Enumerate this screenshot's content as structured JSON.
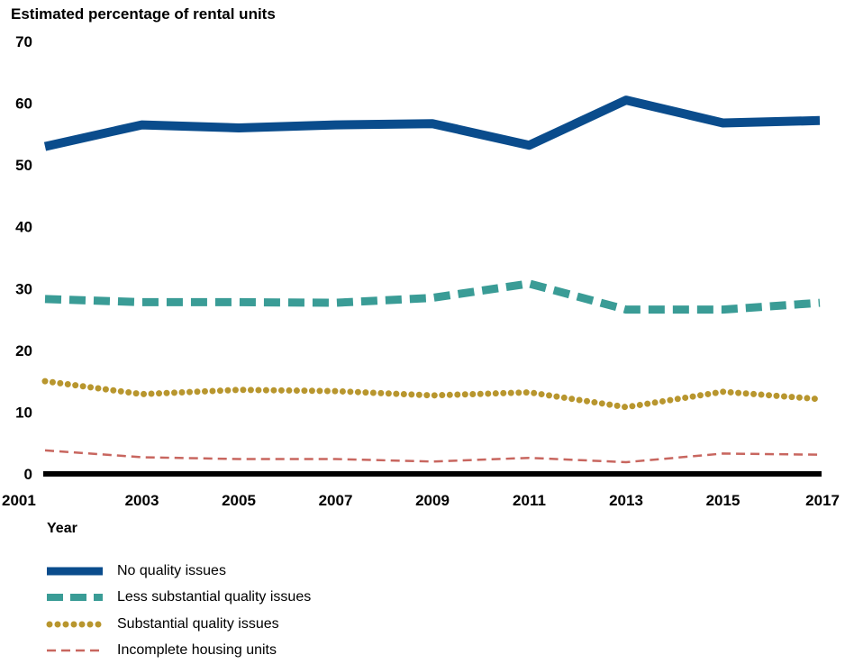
{
  "chart_data": {
    "type": "line",
    "ylabel": "Estimated percentage of rental units",
    "xlabel": "Year",
    "x": [
      2001,
      2003,
      2005,
      2007,
      2009,
      2011,
      2013,
      2015,
      2017
    ],
    "ylim": [
      0,
      70
    ],
    "yticks": [
      0,
      10,
      20,
      30,
      40,
      50,
      60,
      70
    ],
    "grid": false,
    "legend_position": "bottom",
    "series": [
      {
        "name": "No quality issues",
        "values": [
          53,
          56.5,
          56,
          56.5,
          56.7,
          53.2,
          60.5,
          56.8,
          57.2
        ],
        "color": "#0a4c8c",
        "style": "solid"
      },
      {
        "name": "Less substantial quality issues",
        "values": [
          28.3,
          27.8,
          27.8,
          27.7,
          28.5,
          30.8,
          26.6,
          26.6,
          27.7
        ],
        "color": "#3a9c96",
        "style": "dashed"
      },
      {
        "name": "Substantial quality issues",
        "values": [
          15,
          12.9,
          13.6,
          13.4,
          12.7,
          13.2,
          10.8,
          13.3,
          12.1
        ],
        "color": "#b8962e",
        "style": "dotted"
      },
      {
        "name": "Incomplete housing units",
        "values": [
          3.8,
          2.7,
          2.4,
          2.4,
          2,
          2.6,
          1.9,
          3.3,
          3.1
        ],
        "color": "#c8665f",
        "style": "thin-dashed"
      }
    ]
  }
}
